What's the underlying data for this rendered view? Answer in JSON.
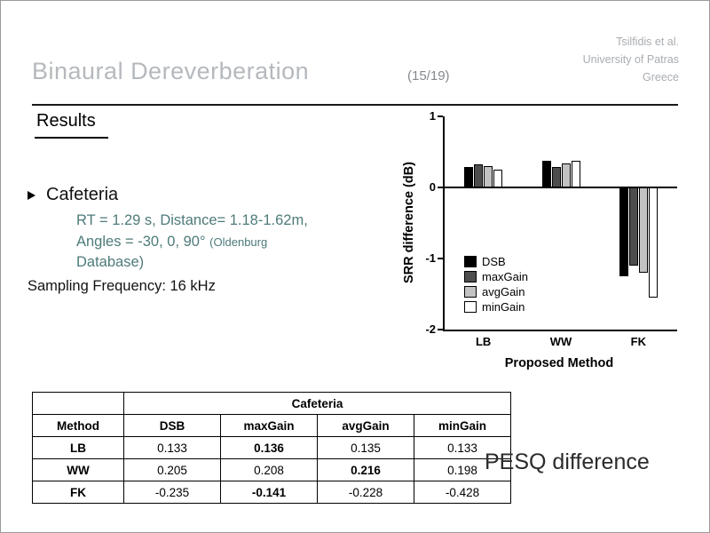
{
  "colors": {
    "title_gray": "#b5b9bd",
    "page_gray": "#85898d",
    "attribution_gray": "#a9adb1",
    "detail_teal": "#4e7a7a",
    "rule_black": "#1a1a1a"
  },
  "slide": {
    "title": "Binaural Dereverberation",
    "page_indicator": "(15/19)",
    "attribution": [
      "Tsilfidis et al.",
      "University of Patras",
      "Greece"
    ],
    "section_heading": "Results",
    "bullet_title": "Cafeteria",
    "detail_line1": "RT = 1.29 s, Distance= 1.18-1.62m,",
    "detail_line2": "Angles = -30, 0, 90°",
    "detail_line2_small": "(Oldenburg",
    "detail_line3_small": "Database)",
    "sampling_line": "Sampling Frequency: 16 kHz",
    "pesq_label": "PESQ difference"
  },
  "chart_data": {
    "type": "bar",
    "title": "",
    "xlabel": "Proposed Method",
    "ylabel": "SRR difference (dB)",
    "ylim": [
      -2,
      1
    ],
    "yticks": [
      1,
      0,
      -1,
      -2
    ],
    "categories": [
      "LB",
      "WW",
      "FK"
    ],
    "series": [
      {
        "name": "DSB",
        "color": "#000000",
        "values": [
          0.29,
          0.37,
          -1.25
        ]
      },
      {
        "name": "maxGain",
        "color": "#4d4d4d",
        "values": [
          0.32,
          0.29,
          -1.1
        ]
      },
      {
        "name": "avgGain",
        "color": "#c2c2c2",
        "values": [
          0.3,
          0.34,
          -1.2
        ]
      },
      {
        "name": "minGain",
        "color": "#ffffff",
        "values": [
          0.25,
          0.37,
          -1.55
        ]
      }
    ],
    "legend_position": "inside-lower-left",
    "grid": false
  },
  "table": {
    "title": "Cafeteria",
    "columns": [
      "Method",
      "DSB",
      "maxGain",
      "avgGain",
      "minGain"
    ],
    "rows": [
      {
        "method": "LB",
        "values": [
          "0.133",
          "0.136",
          "0.135",
          "0.133"
        ],
        "bold_value_index": 1
      },
      {
        "method": "WW",
        "values": [
          "0.205",
          "0.208",
          "0.216",
          "0.198"
        ],
        "bold_value_index": 2
      },
      {
        "method": "FK",
        "values": [
          "-0.235",
          "-0.141",
          "-0.228",
          "-0.428"
        ],
        "bold_value_index": 1
      }
    ]
  }
}
